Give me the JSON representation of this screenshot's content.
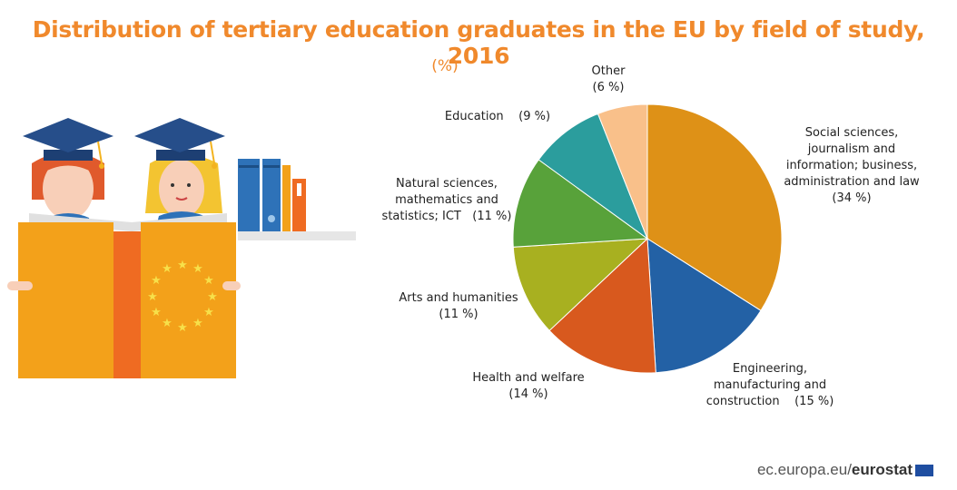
{
  "header": {
    "title": "Distribution of tertiary education graduates in the EU by field of study, 2016",
    "unit": "(%)"
  },
  "footer": {
    "site": "ec.europa.eu/",
    "brand": "eurostat"
  },
  "chart_data": {
    "type": "pie",
    "title": "Distribution of tertiary education graduates in the EU by field of study, 2016",
    "unit": "(%)",
    "start_angle": "12 o'clock",
    "direction": "clockwise",
    "slices": [
      {
        "label": "Social sciences,\njournalism and\ninformation; business,\nadministration and law\n(34 %)",
        "value": 34,
        "color": "#de9117"
      },
      {
        "label": "Engineering,\nmanufacturing and\nconstruction    (15 %)",
        "value": 15,
        "color": "#2361a5"
      },
      {
        "label": "Health and welfare\n(14 %)",
        "value": 14,
        "color": "#d8591e"
      },
      {
        "label": "Arts and humanities\n(11 %)",
        "value": 11,
        "color": "#a8b020"
      },
      {
        "label": "Natural sciences,\nmathematics and\nstatistics; ICT   (11 %)",
        "value": 11,
        "color": "#58a23a"
      },
      {
        "label": "Education    (9 %)",
        "value": 9,
        "color": "#2b9d9d"
      },
      {
        "label": "Other\n(6 %)",
        "value": 6,
        "color": "#f9c08a"
      }
    ]
  }
}
